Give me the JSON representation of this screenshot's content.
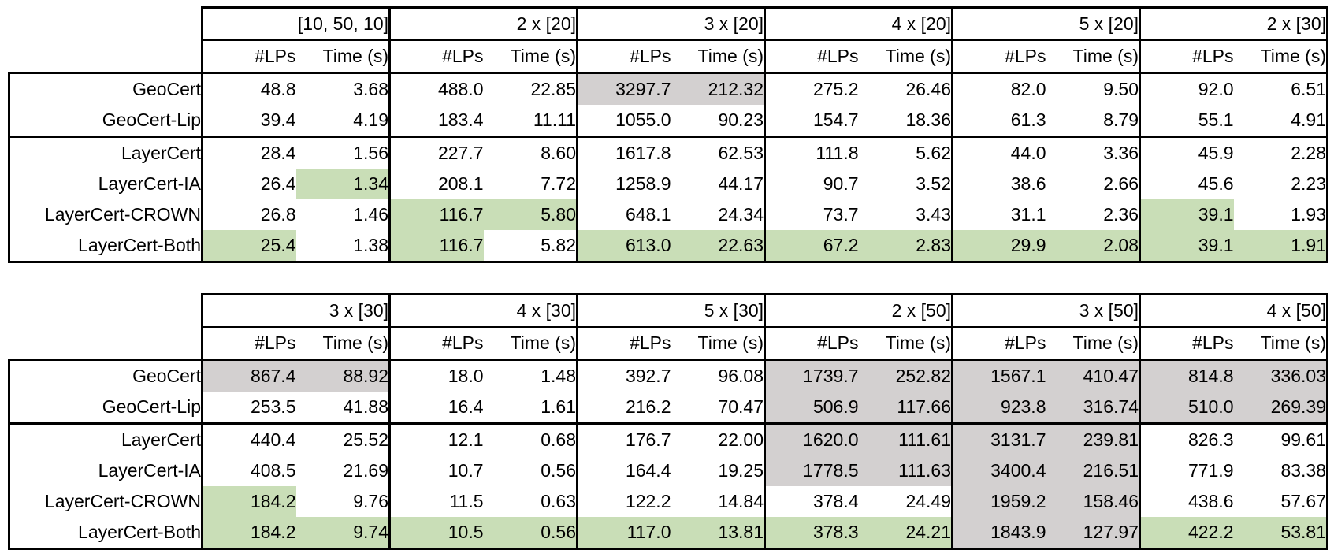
{
  "colors": {
    "best_highlight_green": "#c9deb7",
    "worst_highlight_gray": "#d3d0d0",
    "border": "#000000",
    "background": "#ffffff"
  },
  "subheader": {
    "lps_label": "#LPs",
    "time_label": "Time (s)"
  },
  "tables": [
    {
      "name": "results-table-top",
      "groups": [
        "[10, 50, 10]",
        "2 x [20]",
        "3 x [20]",
        "4 x [20]",
        "5 x [20]",
        "2 x [30]"
      ],
      "rows": [
        {
          "label": "GeoCert",
          "section_break": false,
          "cells": [
            [
              "48.8",
              "3.68"
            ],
            [
              "488.0",
              "22.85"
            ],
            [
              "3297.7",
              "212.32"
            ],
            [
              "275.2",
              "26.46"
            ],
            [
              "82.0",
              "9.50"
            ],
            [
              "92.0",
              "6.51"
            ]
          ],
          "hl": [
            [
              "",
              ""
            ],
            [
              "",
              ""
            ],
            [
              "y",
              "y"
            ],
            [
              "",
              ""
            ],
            [
              "",
              ""
            ],
            [
              "",
              ""
            ]
          ]
        },
        {
          "label": "GeoCert-Lip",
          "section_break": false,
          "cells": [
            [
              "39.4",
              "4.19"
            ],
            [
              "183.4",
              "11.11"
            ],
            [
              "1055.0",
              "90.23"
            ],
            [
              "154.7",
              "18.36"
            ],
            [
              "61.3",
              "8.79"
            ],
            [
              "55.1",
              "4.91"
            ]
          ],
          "hl": [
            [
              "",
              ""
            ],
            [
              "",
              ""
            ],
            [
              "",
              ""
            ],
            [
              "",
              ""
            ],
            [
              "",
              ""
            ],
            [
              "",
              ""
            ]
          ]
        },
        {
          "label": "LayerCert",
          "section_break": true,
          "cells": [
            [
              "28.4",
              "1.56"
            ],
            [
              "227.7",
              "8.60"
            ],
            [
              "1617.8",
              "62.53"
            ],
            [
              "111.8",
              "5.62"
            ],
            [
              "44.0",
              "3.36"
            ],
            [
              "45.9",
              "2.28"
            ]
          ],
          "hl": [
            [
              "",
              ""
            ],
            [
              "",
              ""
            ],
            [
              "",
              ""
            ],
            [
              "",
              ""
            ],
            [
              "",
              ""
            ],
            [
              "",
              ""
            ]
          ]
        },
        {
          "label": "LayerCert-IA",
          "section_break": false,
          "cells": [
            [
              "26.4",
              "1.34"
            ],
            [
              "208.1",
              "7.72"
            ],
            [
              "1258.9",
              "44.17"
            ],
            [
              "90.7",
              "3.52"
            ],
            [
              "38.6",
              "2.66"
            ],
            [
              "45.6",
              "2.23"
            ]
          ],
          "hl": [
            [
              "",
              "g"
            ],
            [
              "",
              ""
            ],
            [
              "",
              ""
            ],
            [
              "",
              ""
            ],
            [
              "",
              ""
            ],
            [
              "",
              ""
            ]
          ]
        },
        {
          "label": "LayerCert-CROWN",
          "section_break": false,
          "cells": [
            [
              "26.8",
              "1.46"
            ],
            [
              "116.7",
              "5.80"
            ],
            [
              "648.1",
              "24.34"
            ],
            [
              "73.7",
              "3.43"
            ],
            [
              "31.1",
              "2.36"
            ],
            [
              "39.1",
              "1.93"
            ]
          ],
          "hl": [
            [
              "",
              ""
            ],
            [
              "g",
              "g"
            ],
            [
              "",
              ""
            ],
            [
              "",
              ""
            ],
            [
              "",
              ""
            ],
            [
              "g",
              ""
            ]
          ]
        },
        {
          "label": "LayerCert-Both",
          "section_break": false,
          "cells": [
            [
              "25.4",
              "1.38"
            ],
            [
              "116.7",
              "5.82"
            ],
            [
              "613.0",
              "22.63"
            ],
            [
              "67.2",
              "2.83"
            ],
            [
              "29.9",
              "2.08"
            ],
            [
              "39.1",
              "1.91"
            ]
          ],
          "hl": [
            [
              "g",
              ""
            ],
            [
              "g",
              ""
            ],
            [
              "g",
              "g"
            ],
            [
              "g",
              "g"
            ],
            [
              "g",
              "g"
            ],
            [
              "g",
              "g"
            ]
          ]
        }
      ]
    },
    {
      "name": "results-table-bottom",
      "groups": [
        "3 x [30]",
        "4 x [30]",
        "5 x [30]",
        "2 x [50]",
        "3 x [50]",
        "4 x [50]"
      ],
      "rows": [
        {
          "label": "GeoCert",
          "section_break": false,
          "cells": [
            [
              "867.4",
              "88.92"
            ],
            [
              "18.0",
              "1.48"
            ],
            [
              "392.7",
              "96.08"
            ],
            [
              "1739.7",
              "252.82"
            ],
            [
              "1567.1",
              "410.47"
            ],
            [
              "814.8",
              "336.03"
            ]
          ],
          "hl": [
            [
              "y",
              "y"
            ],
            [
              "",
              ""
            ],
            [
              "",
              ""
            ],
            [
              "y",
              "y"
            ],
            [
              "y",
              "y"
            ],
            [
              "y",
              "y"
            ]
          ]
        },
        {
          "label": "GeoCert-Lip",
          "section_break": false,
          "cells": [
            [
              "253.5",
              "41.88"
            ],
            [
              "16.4",
              "1.61"
            ],
            [
              "216.2",
              "70.47"
            ],
            [
              "506.9",
              "117.66"
            ],
            [
              "923.8",
              "316.74"
            ],
            [
              "510.0",
              "269.39"
            ]
          ],
          "hl": [
            [
              "",
              ""
            ],
            [
              "",
              ""
            ],
            [
              "",
              ""
            ],
            [
              "y",
              "y"
            ],
            [
              "y",
              "y"
            ],
            [
              "y",
              "y"
            ]
          ]
        },
        {
          "label": "LayerCert",
          "section_break": true,
          "cells": [
            [
              "440.4",
              "25.52"
            ],
            [
              "12.1",
              "0.68"
            ],
            [
              "176.7",
              "22.00"
            ],
            [
              "1620.0",
              "111.61"
            ],
            [
              "3131.7",
              "239.81"
            ],
            [
              "826.3",
              "99.61"
            ]
          ],
          "hl": [
            [
              "",
              ""
            ],
            [
              "",
              ""
            ],
            [
              "",
              ""
            ],
            [
              "y",
              "y"
            ],
            [
              "y",
              "y"
            ],
            [
              "",
              ""
            ]
          ]
        },
        {
          "label": "LayerCert-IA",
          "section_break": false,
          "cells": [
            [
              "408.5",
              "21.69"
            ],
            [
              "10.7",
              "0.56"
            ],
            [
              "164.4",
              "19.25"
            ],
            [
              "1778.5",
              "111.63"
            ],
            [
              "3400.4",
              "216.51"
            ],
            [
              "771.9",
              "83.38"
            ]
          ],
          "hl": [
            [
              "",
              ""
            ],
            [
              "",
              ""
            ],
            [
              "",
              ""
            ],
            [
              "y",
              "y"
            ],
            [
              "y",
              "y"
            ],
            [
              "",
              ""
            ]
          ]
        },
        {
          "label": "LayerCert-CROWN",
          "section_break": false,
          "cells": [
            [
              "184.2",
              "9.76"
            ],
            [
              "11.5",
              "0.63"
            ],
            [
              "122.2",
              "14.84"
            ],
            [
              "378.4",
              "24.49"
            ],
            [
              "1959.2",
              "158.46"
            ],
            [
              "438.6",
              "57.67"
            ]
          ],
          "hl": [
            [
              "g",
              ""
            ],
            [
              "",
              ""
            ],
            [
              "",
              ""
            ],
            [
              "",
              ""
            ],
            [
              "y",
              "y"
            ],
            [
              "",
              ""
            ]
          ]
        },
        {
          "label": "LayerCert-Both",
          "section_break": false,
          "cells": [
            [
              "184.2",
              "9.74"
            ],
            [
              "10.5",
              "0.56"
            ],
            [
              "117.0",
              "13.81"
            ],
            [
              "378.3",
              "24.21"
            ],
            [
              "1843.9",
              "127.97"
            ],
            [
              "422.2",
              "53.81"
            ]
          ],
          "hl": [
            [
              "g",
              "g"
            ],
            [
              "g",
              "g"
            ],
            [
              "g",
              "g"
            ],
            [
              "g",
              "g"
            ],
            [
              "y",
              "y"
            ],
            [
              "g",
              "g"
            ]
          ]
        }
      ]
    }
  ]
}
